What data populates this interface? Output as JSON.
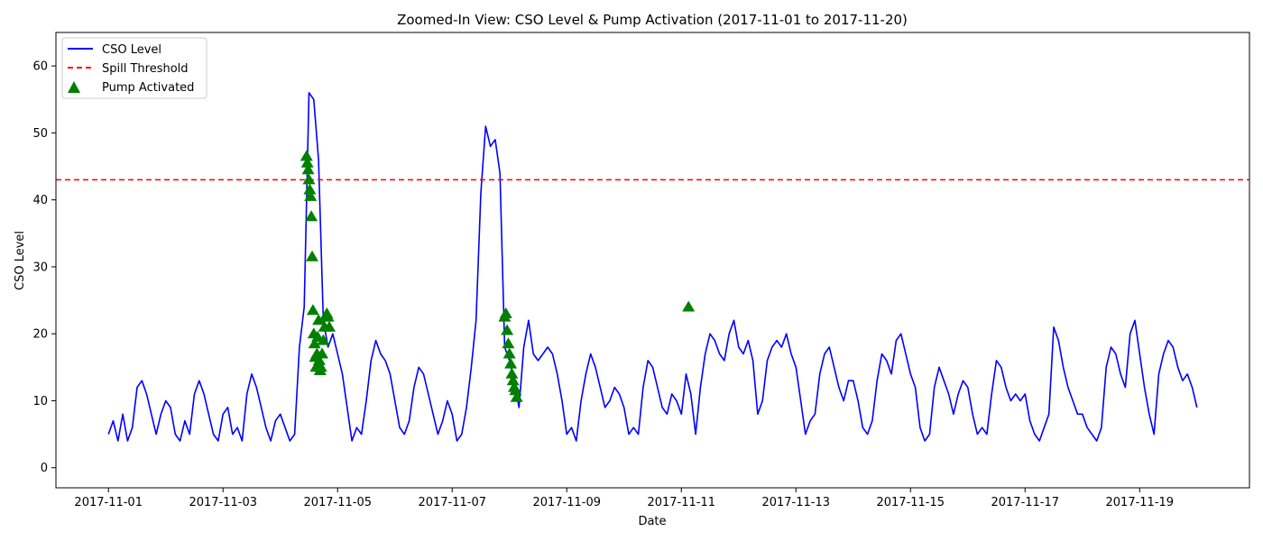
{
  "chart_data": {
    "type": "line",
    "title": "Zoomed-In View: CSO Level & Pump Activation (2017-11-01 to 2017-11-20)",
    "xlabel": "Date",
    "ylabel": "CSO Level",
    "xlim": [
      "2017-10-31T02:00",
      "2017-11-20T22:00"
    ],
    "ylim": [
      -3,
      65
    ],
    "x_ticks": [
      "2017-11-01",
      "2017-11-03",
      "2017-11-05",
      "2017-11-07",
      "2017-11-09",
      "2017-11-11",
      "2017-11-13",
      "2017-11-15",
      "2017-11-17",
      "2017-11-19"
    ],
    "y_ticks": [
      0,
      10,
      20,
      30,
      40,
      50,
      60
    ],
    "legend_position": "top-left",
    "threshold": {
      "name": "Spill Threshold",
      "value": 43,
      "color": "#ff0000"
    },
    "series": [
      {
        "name": "CSO Level",
        "color": "#0000ff",
        "x": [
          "2017-11-01T00:00",
          "2017-11-01T02:00",
          "2017-11-01T04:00",
          "2017-11-01T06:00",
          "2017-11-01T08:00",
          "2017-11-01T10:00",
          "2017-11-01T12:00",
          "2017-11-01T14:00",
          "2017-11-01T16:00",
          "2017-11-01T18:00",
          "2017-11-01T20:00",
          "2017-11-01T22:00",
          "2017-11-02T00:00",
          "2017-11-02T02:00",
          "2017-11-02T04:00",
          "2017-11-02T06:00",
          "2017-11-02T08:00",
          "2017-11-02T10:00",
          "2017-11-02T12:00",
          "2017-11-02T14:00",
          "2017-11-02T16:00",
          "2017-11-02T18:00",
          "2017-11-02T20:00",
          "2017-11-02T22:00",
          "2017-11-03T00:00",
          "2017-11-03T02:00",
          "2017-11-03T04:00",
          "2017-11-03T06:00",
          "2017-11-03T08:00",
          "2017-11-03T10:00",
          "2017-11-03T12:00",
          "2017-11-03T14:00",
          "2017-11-03T16:00",
          "2017-11-03T18:00",
          "2017-11-03T20:00",
          "2017-11-03T22:00",
          "2017-11-04T00:00",
          "2017-11-04T02:00",
          "2017-11-04T04:00",
          "2017-11-04T06:00",
          "2017-11-04T08:00",
          "2017-11-04T10:00",
          "2017-11-04T12:00",
          "2017-11-04T14:00",
          "2017-11-04T16:00",
          "2017-11-04T18:00",
          "2017-11-04T20:00",
          "2017-11-04T22:00",
          "2017-11-05T00:00",
          "2017-11-05T02:00",
          "2017-11-05T04:00",
          "2017-11-05T06:00",
          "2017-11-05T08:00",
          "2017-11-05T10:00",
          "2017-11-05T12:00",
          "2017-11-05T14:00",
          "2017-11-05T16:00",
          "2017-11-05T18:00",
          "2017-11-05T20:00",
          "2017-11-05T22:00",
          "2017-11-06T00:00",
          "2017-11-06T02:00",
          "2017-11-06T04:00",
          "2017-11-06T06:00",
          "2017-11-06T08:00",
          "2017-11-06T10:00",
          "2017-11-06T12:00",
          "2017-11-06T14:00",
          "2017-11-06T16:00",
          "2017-11-06T18:00",
          "2017-11-06T20:00",
          "2017-11-06T22:00",
          "2017-11-07T00:00",
          "2017-11-07T02:00",
          "2017-11-07T04:00",
          "2017-11-07T06:00",
          "2017-11-07T08:00",
          "2017-11-07T10:00",
          "2017-11-07T12:00",
          "2017-11-07T14:00",
          "2017-11-07T16:00",
          "2017-11-07T18:00",
          "2017-11-07T20:00",
          "2017-11-07T22:00",
          "2017-11-08T00:00",
          "2017-11-08T02:00",
          "2017-11-08T04:00",
          "2017-11-08T06:00",
          "2017-11-08T08:00",
          "2017-11-08T10:00",
          "2017-11-08T12:00",
          "2017-11-08T14:00",
          "2017-11-08T16:00",
          "2017-11-08T18:00",
          "2017-11-08T20:00",
          "2017-11-08T22:00",
          "2017-11-09T00:00",
          "2017-11-09T02:00",
          "2017-11-09T04:00",
          "2017-11-09T06:00",
          "2017-11-09T08:00",
          "2017-11-09T10:00",
          "2017-11-09T12:00",
          "2017-11-09T14:00",
          "2017-11-09T16:00",
          "2017-11-09T18:00",
          "2017-11-09T20:00",
          "2017-11-09T22:00",
          "2017-11-10T00:00",
          "2017-11-10T02:00",
          "2017-11-10T04:00",
          "2017-11-10T06:00",
          "2017-11-10T08:00",
          "2017-11-10T10:00",
          "2017-11-10T12:00",
          "2017-11-10T14:00",
          "2017-11-10T16:00",
          "2017-11-10T18:00",
          "2017-11-10T20:00",
          "2017-11-10T22:00",
          "2017-11-11T00:00",
          "2017-11-11T02:00",
          "2017-11-11T04:00",
          "2017-11-11T06:00",
          "2017-11-11T08:00",
          "2017-11-11T10:00",
          "2017-11-11T12:00",
          "2017-11-11T14:00",
          "2017-11-11T16:00",
          "2017-11-11T18:00",
          "2017-11-11T20:00",
          "2017-11-11T22:00",
          "2017-11-12T00:00",
          "2017-11-12T02:00",
          "2017-11-12T04:00",
          "2017-11-12T06:00",
          "2017-11-12T08:00",
          "2017-11-12T10:00",
          "2017-11-12T12:00",
          "2017-11-12T14:00",
          "2017-11-12T16:00",
          "2017-11-12T18:00",
          "2017-11-12T20:00",
          "2017-11-12T22:00",
          "2017-11-13T00:00",
          "2017-11-13T02:00",
          "2017-11-13T04:00",
          "2017-11-13T06:00",
          "2017-11-13T08:00",
          "2017-11-13T10:00",
          "2017-11-13T12:00",
          "2017-11-13T14:00",
          "2017-11-13T16:00",
          "2017-11-13T18:00",
          "2017-11-13T20:00",
          "2017-11-13T22:00",
          "2017-11-14T00:00",
          "2017-11-14T02:00",
          "2017-11-14T04:00",
          "2017-11-14T06:00",
          "2017-11-14T08:00",
          "2017-11-14T10:00",
          "2017-11-14T12:00",
          "2017-11-14T14:00",
          "2017-11-14T16:00",
          "2017-11-14T18:00",
          "2017-11-14T20:00",
          "2017-11-14T22:00",
          "2017-11-15T00:00",
          "2017-11-15T02:00",
          "2017-11-15T04:00",
          "2017-11-15T06:00",
          "2017-11-15T08:00",
          "2017-11-15T10:00",
          "2017-11-15T12:00",
          "2017-11-15T14:00",
          "2017-11-15T16:00",
          "2017-11-15T18:00",
          "2017-11-15T20:00",
          "2017-11-15T22:00",
          "2017-11-16T00:00",
          "2017-11-16T02:00",
          "2017-11-16T04:00",
          "2017-11-16T06:00",
          "2017-11-16T08:00",
          "2017-11-16T10:00",
          "2017-11-16T12:00",
          "2017-11-16T14:00",
          "2017-11-16T16:00",
          "2017-11-16T18:00",
          "2017-11-16T20:00",
          "2017-11-16T22:00",
          "2017-11-17T00:00",
          "2017-11-17T02:00",
          "2017-11-17T04:00",
          "2017-11-17T06:00",
          "2017-11-17T08:00",
          "2017-11-17T10:00",
          "2017-11-17T12:00",
          "2017-11-17T14:00",
          "2017-11-17T16:00",
          "2017-11-17T18:00",
          "2017-11-17T20:00",
          "2017-11-17T22:00",
          "2017-11-18T00:00",
          "2017-11-18T02:00",
          "2017-11-18T04:00",
          "2017-11-18T06:00",
          "2017-11-18T08:00",
          "2017-11-18T10:00",
          "2017-11-18T12:00",
          "2017-11-18T14:00",
          "2017-11-18T16:00",
          "2017-11-18T18:00",
          "2017-11-18T20:00",
          "2017-11-18T22:00",
          "2017-11-19T00:00",
          "2017-11-19T02:00",
          "2017-11-19T04:00",
          "2017-11-19T06:00",
          "2017-11-19T08:00",
          "2017-11-19T10:00",
          "2017-11-19T12:00",
          "2017-11-19T14:00",
          "2017-11-19T16:00",
          "2017-11-19T18:00",
          "2017-11-19T20:00",
          "2017-11-19T22:00",
          "2017-11-20T00:00"
        ],
        "y": [
          5,
          7,
          4,
          8,
          4,
          6,
          12,
          13,
          11,
          8,
          5,
          8,
          10,
          9,
          5,
          4,
          7,
          5,
          11,
          13,
          11,
          8,
          5,
          4,
          8,
          9,
          5,
          6,
          4,
          11,
          14,
          12,
          9,
          6,
          4,
          7,
          8,
          6,
          4,
          5,
          18,
          24,
          56,
          55,
          46,
          22,
          18,
          20,
          17,
          14,
          9,
          4,
          6,
          5,
          10,
          16,
          19,
          17,
          16,
          14,
          10,
          6,
          5,
          7,
          12,
          15,
          14,
          11,
          8,
          5,
          7,
          10,
          8,
          4,
          5,
          9,
          15,
          22,
          41,
          51,
          48,
          49,
          44,
          18,
          16,
          13,
          9,
          18,
          22,
          17,
          16,
          17,
          18,
          17,
          14,
          10,
          5,
          6,
          4,
          10,
          14,
          17,
          15,
          12,
          9,
          10,
          12,
          11,
          9,
          5,
          6,
          5,
          12,
          16,
          15,
          12,
          9,
          8,
          11,
          10,
          8,
          14,
          11,
          5,
          12,
          17,
          20,
          19,
          17,
          16,
          20,
          22,
          18,
          17,
          19,
          16,
          8,
          10,
          16,
          18,
          19,
          18,
          20,
          17,
          15,
          10,
          5,
          7,
          8,
          14,
          17,
          18,
          15,
          12,
          10,
          13,
          13,
          10,
          6,
          5,
          7,
          13,
          17,
          16,
          14,
          19,
          20,
          17,
          14,
          12,
          6,
          4,
          5,
          12,
          15,
          13,
          11,
          8,
          11,
          13,
          12,
          8,
          5,
          6,
          5,
          11,
          16,
          15,
          12,
          10,
          11,
          10,
          11,
          7,
          5,
          4,
          6,
          8,
          21,
          19,
          15,
          12,
          10,
          8,
          8,
          6,
          5,
          4,
          6,
          15,
          18,
          17,
          14,
          12,
          20,
          22,
          17,
          12,
          8,
          5,
          14,
          17,
          19,
          18,
          15,
          13,
          14,
          12,
          9
        ]
      },
      {
        "name": "Pump Activated",
        "color": "#008000",
        "marker": "triangle",
        "x": [
          "2017-11-04T11:00",
          "2017-11-04T11:20",
          "2017-11-04T11:40",
          "2017-11-04T12:00",
          "2017-11-04T12:20",
          "2017-11-04T12:40",
          "2017-11-04T13:00",
          "2017-11-04T13:20",
          "2017-11-04T13:40",
          "2017-11-04T14:00",
          "2017-11-04T14:20",
          "2017-11-04T14:40",
          "2017-11-04T15:00",
          "2017-11-04T15:20",
          "2017-11-04T15:40",
          "2017-11-04T16:00",
          "2017-11-04T16:20",
          "2017-11-04T16:40",
          "2017-11-04T17:00",
          "2017-11-04T17:30",
          "2017-11-04T18:00",
          "2017-11-04T18:30",
          "2017-11-04T19:00",
          "2017-11-04T19:30",
          "2017-11-04T20:00",
          "2017-11-04T20:30",
          "2017-11-07T22:00",
          "2017-11-07T22:30",
          "2017-11-07T23:00",
          "2017-11-07T23:30",
          "2017-11-08T00:00",
          "2017-11-08T00:30",
          "2017-11-08T01:00",
          "2017-11-08T01:30",
          "2017-11-08T02:00",
          "2017-11-08T02:30",
          "2017-11-08T03:00",
          "2017-11-11T03:00"
        ],
        "y": [
          46.5,
          45.5,
          44.5,
          43,
          41.5,
          40.5,
          37.5,
          31.5,
          23.5,
          20,
          18.5,
          16.5,
          15,
          17,
          19.5,
          22,
          16,
          14.5,
          15,
          17,
          19,
          21,
          22.5,
          23,
          22.5,
          21,
          22.5,
          23,
          20.5,
          18.5,
          17,
          15.5,
          14,
          13,
          12,
          11.5,
          10.5,
          24
        ]
      }
    ]
  }
}
